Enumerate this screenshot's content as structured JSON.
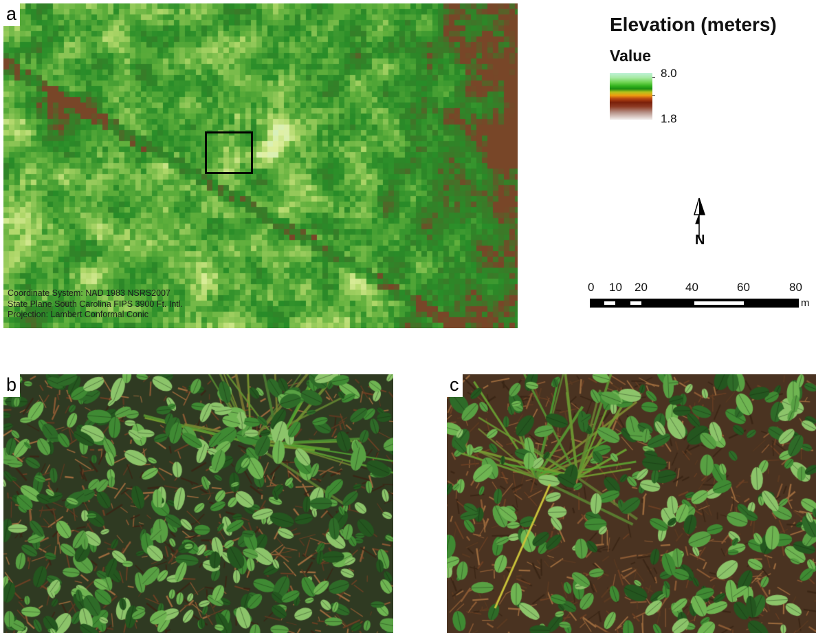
{
  "panels": {
    "a": {
      "label": "a",
      "content": "elevation raster map"
    },
    "b": {
      "label": "b",
      "content": "ground vegetation photograph"
    },
    "c": {
      "label": "c",
      "content": "ground vegetation photograph"
    }
  },
  "coordinate_info": {
    "line1": "Coordinate System: NAD 1983 NSRS2007",
    "line2": "State Plane South Carolina FIPS 3900 Ft. Intl.",
    "line3": "Projection: Lambert Conformal Conic"
  },
  "legend": {
    "title": "Elevation (meters)",
    "subtitle": "Value",
    "max_label": "8.0",
    "min_label": "1.8",
    "max_value": 8.0,
    "min_value": 1.8,
    "ramp_colors": [
      "#bff2d8",
      "#6fd452",
      "#1a8f12",
      "#b6c21c",
      "#ef9d10",
      "#7a1f0a",
      "#f2eeec"
    ]
  },
  "north_arrow": {
    "letter": "N",
    "icon": "north-arrow-icon"
  },
  "scale_bar": {
    "ticks": [
      "0",
      "10",
      "20",
      "40",
      "60",
      "80"
    ],
    "unit": "m"
  },
  "colors": {
    "map_dark_green": "#2f8a2a",
    "map_light_green": "#dcefa8",
    "selection_box": "#000000"
  }
}
